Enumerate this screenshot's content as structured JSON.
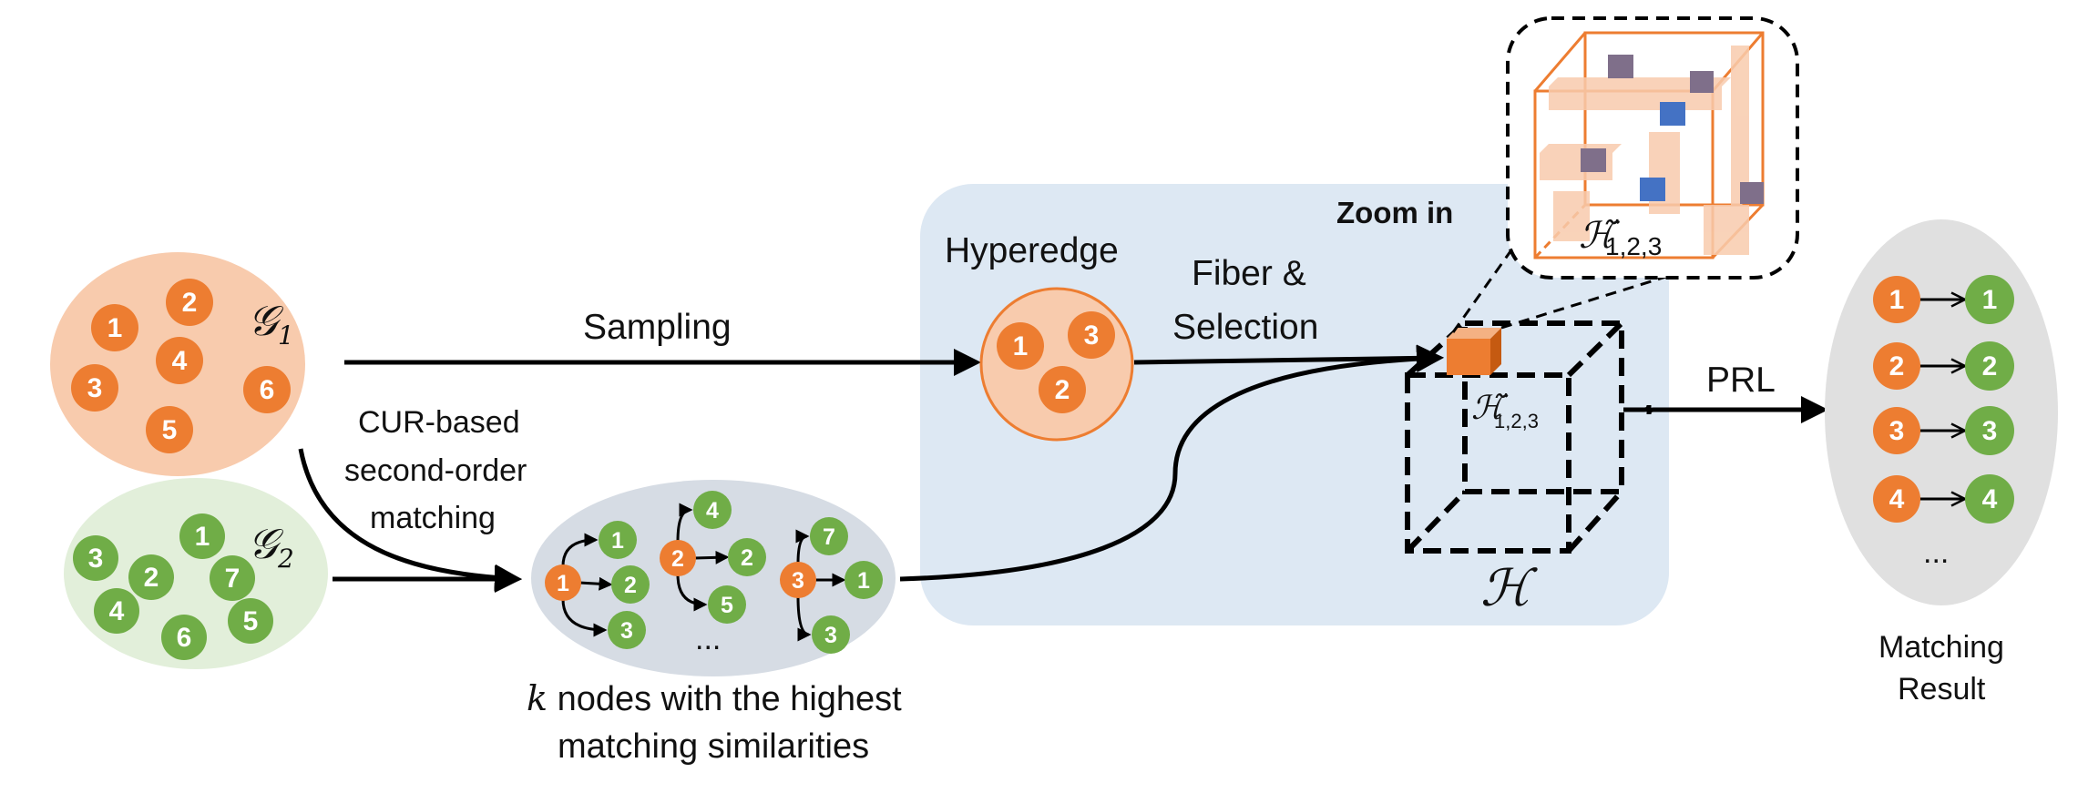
{
  "graphs": {
    "g1": {
      "label": "𝒢",
      "sub": "1",
      "nodes": [
        "1",
        "2",
        "3",
        "4",
        "5",
        "6"
      ]
    },
    "g2": {
      "label": "𝒢",
      "sub": "2",
      "nodes": [
        "1",
        "2",
        "3",
        "4",
        "5",
        "6",
        "7"
      ]
    }
  },
  "labels": {
    "sampling": "Sampling",
    "cur_line1": "CUR-based",
    "cur_line2": "second-order",
    "cur_line3": "matching",
    "hyperedge": "Hyperedge",
    "fiber_line1": "Fiber &",
    "fiber_line2": "Selection",
    "zoom_in": "Zoom in",
    "prl": "PRL",
    "tensor": "ℋ",
    "tensor_sub_label": "ℋ̃",
    "tensor_sub_index": "1,2,3",
    "knodes_k": "k",
    "knodes_line1": " nodes with the highest",
    "knodes_line2": "matching similarities",
    "ellipsis": "...",
    "matching_line1": "Matching",
    "matching_line2": "Result"
  },
  "hyperedge_nodes": [
    "1",
    "3",
    "2"
  ],
  "knn_groups": [
    {
      "source": "1",
      "targets": [
        "1",
        "2",
        "3"
      ]
    },
    {
      "source": "2",
      "targets": [
        "4",
        "2",
        "5"
      ]
    },
    {
      "source": "3",
      "targets": [
        "7",
        "1",
        "3"
      ]
    }
  ],
  "matches": [
    {
      "from": "1",
      "to": "1"
    },
    {
      "from": "2",
      "to": "2"
    },
    {
      "from": "3",
      "to": "3"
    },
    {
      "from": "4",
      "to": "4"
    }
  ],
  "colors": {
    "orange_node": "#ed7d31",
    "green_node": "#70ad47",
    "g1_fill": "#f8cbad",
    "g2_fill": "#e2efda",
    "knn_fill": "#d6dce4",
    "panel_fill": "#dde8f3",
    "result_fill": "#e0e0e0",
    "blue_block": "#4472c4"
  }
}
